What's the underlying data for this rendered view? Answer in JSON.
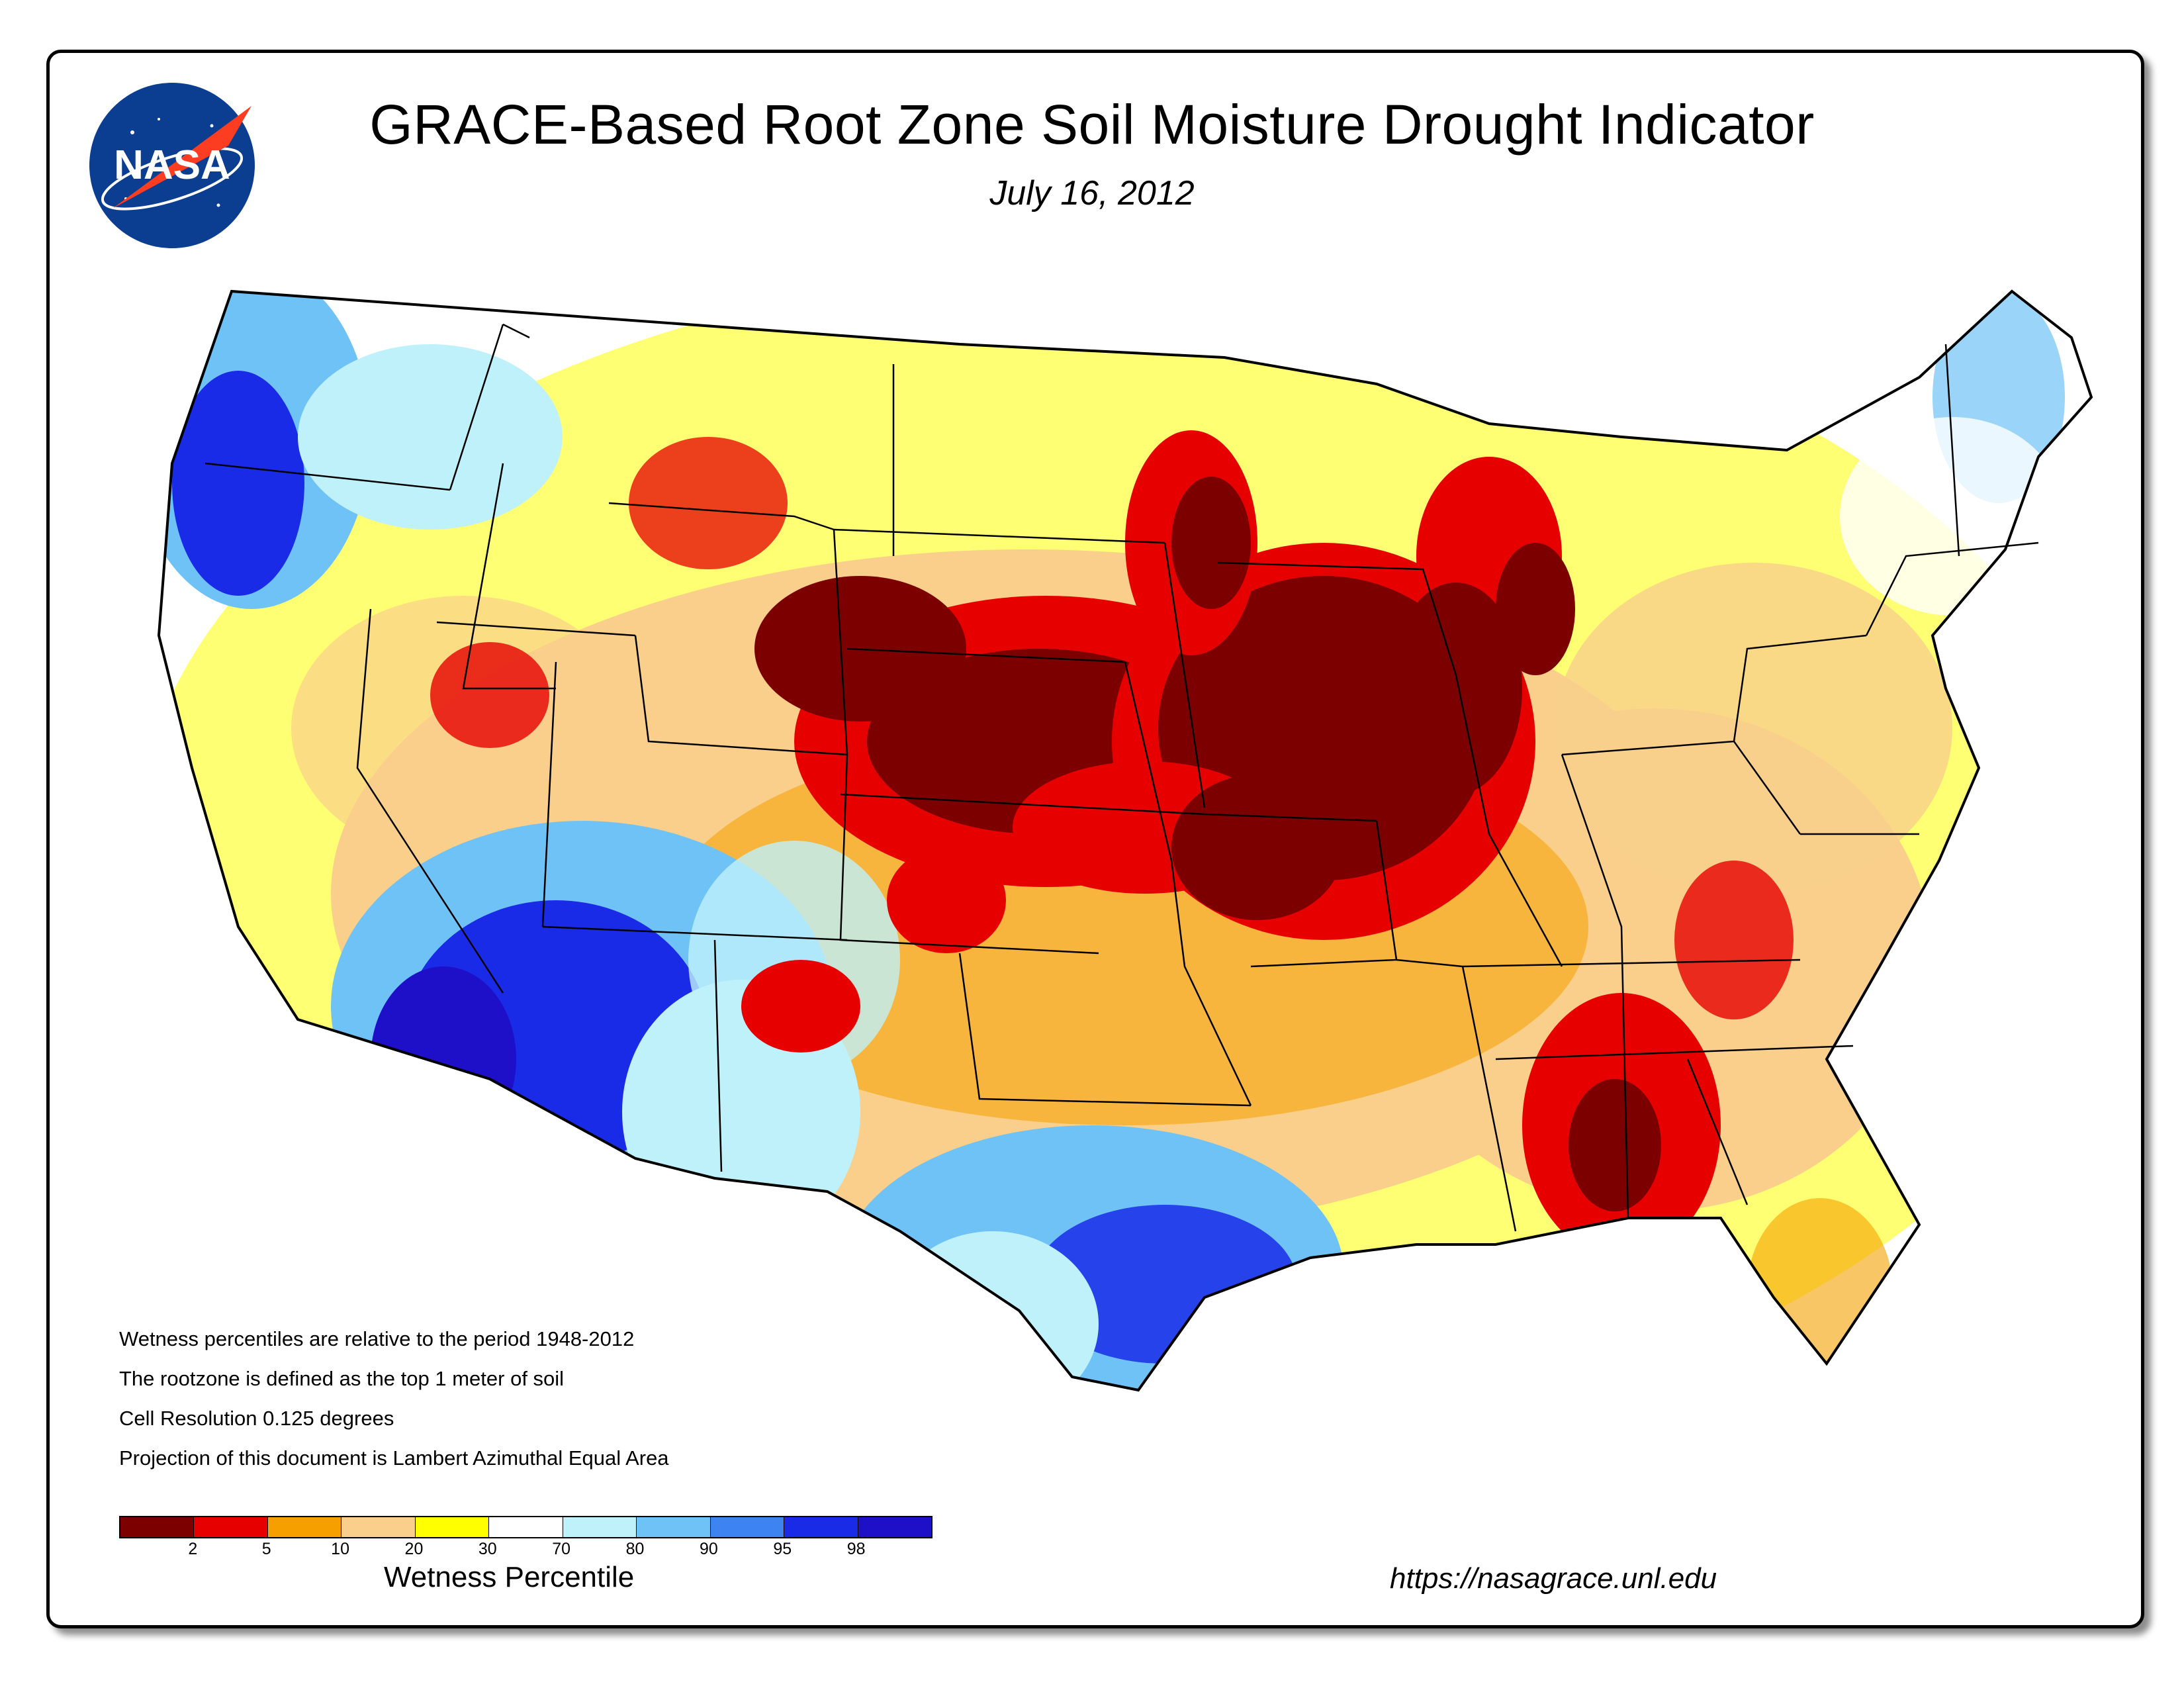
{
  "title": "GRACE-Based Root Zone Soil  Moisture Drought Indicator",
  "date": "July 16, 2012",
  "logo_text": "NASA",
  "notes": [
    "Wetness percentiles are relative to the period 1948-2012",
    "The rootzone is defined as the top 1 meter of soil",
    "Cell Resolution 0.125 degrees",
    "Projection of this document is Lambert Azimuthal Equal Area"
  ],
  "legend": {
    "title": "Wetness Percentile",
    "ticks": [
      "2",
      "5",
      "10",
      "20",
      "30",
      "70",
      "80",
      "90",
      "95",
      "98"
    ],
    "colors": [
      "#7d0000",
      "#e60000",
      "#f5a000",
      "#f9cf8b",
      "#ffff00",
      "#ffffff",
      "#bff1fb",
      "#6fc2f5",
      "#3d83f2",
      "#1a2be8",
      "#1d10c8"
    ]
  },
  "url": "https://nasagrace.unl.edu",
  "map_colors": {
    "land_background": "#ffffff",
    "state_borders": "#000000"
  }
}
